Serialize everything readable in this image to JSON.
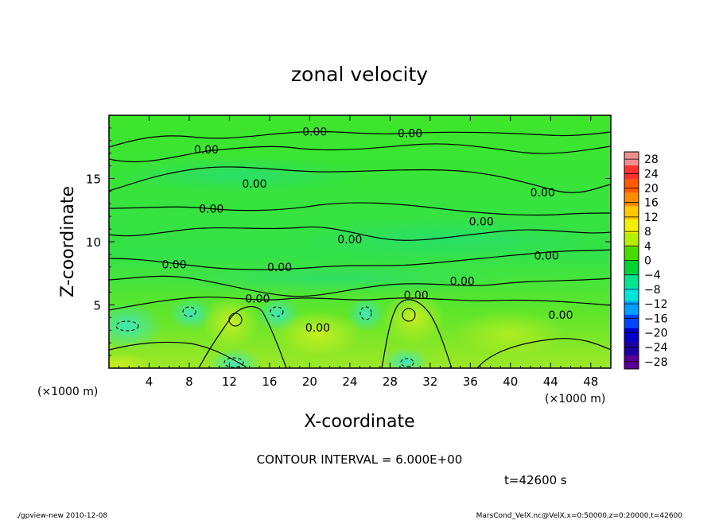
{
  "chart_data": {
    "type": "heatmap",
    "title": "zonal velocity",
    "xlabel": "X-coordinate",
    "ylabel": "Z-coordinate",
    "x_unit_note": "(×1000 m)",
    "z_unit_note": "(×1000 m)",
    "xlim": [
      0,
      50
    ],
    "ylim": [
      0,
      20
    ],
    "x_ticks": [
      4,
      8,
      12,
      16,
      20,
      24,
      28,
      32,
      36,
      40,
      44,
      48
    ],
    "y_ticks": [
      5,
      10,
      15
    ],
    "colorbar": {
      "ticks": [
        28,
        24,
        20,
        16,
        12,
        8,
        4,
        0,
        -4,
        -8,
        -12,
        -16,
        -20,
        -24,
        -28
      ],
      "labels": [
        "28",
        "24",
        "20",
        "16",
        "12",
        "8",
        "4",
        "0",
        "−4",
        "−8",
        "−12",
        "−16",
        "−20",
        "−24",
        "−28"
      ],
      "range": [
        -30,
        30
      ],
      "colors": [
        {
          "v": 30,
          "c": "#f0908c"
        },
        {
          "v": 26,
          "c": "#ff3030"
        },
        {
          "v": 22,
          "c": "#ff5a00"
        },
        {
          "v": 18,
          "c": "#ff8c00"
        },
        {
          "v": 14,
          "c": "#ffc800"
        },
        {
          "v": 10,
          "c": "#f5f000"
        },
        {
          "v": 6,
          "c": "#b4f000"
        },
        {
          "v": 2,
          "c": "#46dc00"
        },
        {
          "v": -2,
          "c": "#00d232"
        },
        {
          "v": -6,
          "c": "#00e68c"
        },
        {
          "v": -10,
          "c": "#00e6dc"
        },
        {
          "v": -14,
          "c": "#00a0ff"
        },
        {
          "v": -18,
          "c": "#0046ff"
        },
        {
          "v": -22,
          "c": "#0000c8"
        },
        {
          "v": -26,
          "c": "#1e00a0"
        },
        {
          "v": -30,
          "c": "#5a0096"
        }
      ]
    },
    "contour_interval": 6.0,
    "contour_labels": [
      {
        "x": 20.5,
        "z": 18.7,
        "text": "0.00"
      },
      {
        "x": 30.0,
        "z": 18.6,
        "text": "0.00"
      },
      {
        "x": 9.7,
        "z": 17.3,
        "text": "0.00"
      },
      {
        "x": 14.5,
        "z": 14.6,
        "text": "0.00"
      },
      {
        "x": 43.2,
        "z": 13.9,
        "text": "0.00"
      },
      {
        "x": 10.2,
        "z": 12.6,
        "text": "0.00"
      },
      {
        "x": 37.1,
        "z": 11.6,
        "text": "0.00"
      },
      {
        "x": 24.0,
        "z": 10.2,
        "text": "0.00"
      },
      {
        "x": 43.6,
        "z": 8.9,
        "text": "0.00"
      },
      {
        "x": 6.5,
        "z": 8.2,
        "text": "0.00"
      },
      {
        "x": 17.0,
        "z": 8.0,
        "text": "0.00"
      },
      {
        "x": 35.2,
        "z": 6.9,
        "text": "0.00"
      },
      {
        "x": 30.6,
        "z": 5.8,
        "text": "0.00"
      },
      {
        "x": 14.8,
        "z": 5.5,
        "text": "0.00"
      },
      {
        "x": 20.8,
        "z": 3.2,
        "text": "0.00"
      },
      {
        "x": 45.0,
        "z": 4.2,
        "text": "0.00"
      }
    ],
    "contour_interval_text": "CONTOUR INTERVAL = 6.000E+00",
    "time_text": "t=42600 s",
    "grid": false
  },
  "footer": {
    "program": "./gpview-new   2010-12-08",
    "source": "MarsCond_VelX.nc@VelX,x=0:50000,z=0:20000,t=42600"
  }
}
